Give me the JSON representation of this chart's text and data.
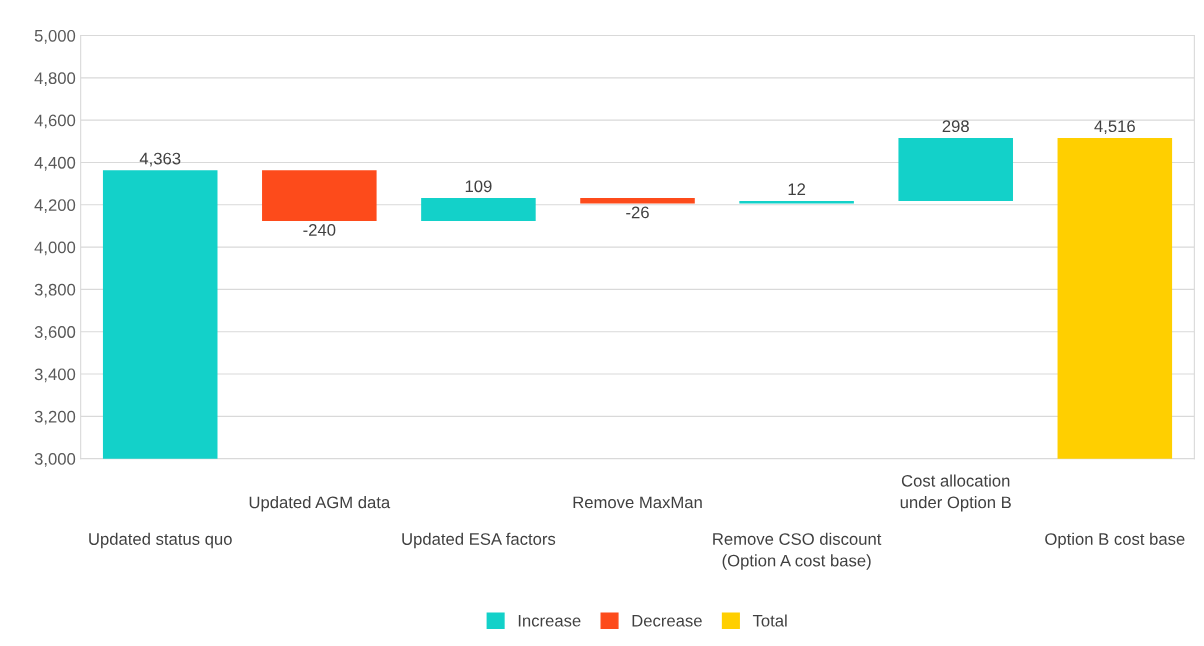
{
  "chart_data": {
    "type": "bar",
    "categories": [
      "Updated status quo",
      "Updated AGM data",
      "Updated ESA factors",
      "Remove MaxMan",
      "Remove CSO discount\n(Option A cost base)",
      "Cost allocation\nunder Option B",
      "Option B cost base"
    ],
    "series": [
      {
        "name": "Increase",
        "color": "#13d1c9",
        "values": [
          4363,
          null,
          109,
          null,
          12,
          298,
          null
        ],
        "base": [
          0,
          null,
          4123,
          null,
          4206,
          4218,
          null
        ],
        "value_labels": [
          "4,363",
          null,
          "109",
          null,
          "12",
          "298",
          null
        ]
      },
      {
        "name": "Decrease",
        "color": "#fd4b1b",
        "values": [
          null,
          -240,
          null,
          -26,
          null,
          null,
          null
        ],
        "base": [
          null,
          4363,
          null,
          4232,
          null,
          null,
          null
        ],
        "value_labels": [
          null,
          "-240",
          null,
          "-26",
          null,
          null,
          null
        ]
      },
      {
        "name": "Total",
        "color": "#ffcf00",
        "values": [
          null,
          null,
          null,
          null,
          null,
          null,
          4516
        ],
        "base": [
          null,
          null,
          null,
          null,
          null,
          null,
          0
        ],
        "value_labels": [
          null,
          null,
          null,
          null,
          null,
          null,
          "4,516"
        ]
      }
    ],
    "ylim": [
      3000,
      5000
    ],
    "yticks": [
      {
        "value": 3000,
        "label": "3,000"
      },
      {
        "value": 3200,
        "label": "3,200"
      },
      {
        "value": 3400,
        "label": "3,400"
      },
      {
        "value": 3600,
        "label": "3,600"
      },
      {
        "value": 3800,
        "label": "3,800"
      },
      {
        "value": 4000,
        "label": "4,000"
      },
      {
        "value": 4200,
        "label": "4,200"
      },
      {
        "value": 4400,
        "label": "4,400"
      },
      {
        "value": 4600,
        "label": "4,600"
      },
      {
        "value": 4800,
        "label": "4,800"
      },
      {
        "value": 5000,
        "label": "5,000"
      }
    ],
    "grid": "y",
    "legend": "bottom"
  }
}
